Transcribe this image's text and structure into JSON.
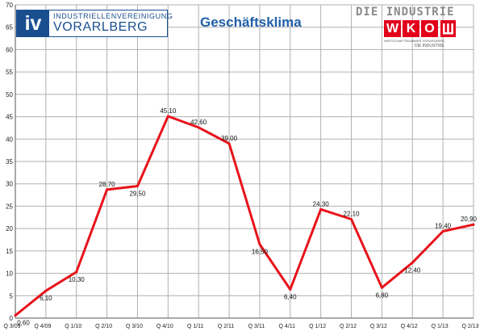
{
  "header": {
    "iv_logo": {
      "mark": "iv",
      "line1": "INDUSTRIELLENVEREINIGUNG",
      "line2": "VORARLBERG",
      "brand_color": "#1a4f8f"
    },
    "wko_logo": {
      "top": "DIE INDUSTRIE",
      "letters": [
        "W",
        "K",
        "O"
      ],
      "tagline": "WIRTSCHAFTSKAMMER VORARLBERG",
      "subline": "DIE INDUSTRIE",
      "brand_color": "#e2001a"
    }
  },
  "chart_data": {
    "type": "line",
    "title": "Geschäftsklima",
    "xlabel": "",
    "ylabel": "",
    "categories": [
      "Q 3/09",
      "Q 4/09",
      "Q 1/10",
      "Q 2/10",
      "Q 3/10",
      "Q 4/10",
      "Q 1/11",
      "Q 2/11",
      "Q 3/11",
      "Q 4/11",
      "Q 1/12",
      "Q 2/12",
      "Q 3/12",
      "Q 4/12",
      "Q 1/13",
      "Q 2/13"
    ],
    "series": [
      {
        "values": [
          0.6,
          6.1,
          10.3,
          28.7,
          29.5,
          45.1,
          42.6,
          39.0,
          16.5,
          6.4,
          24.3,
          22.1,
          6.8,
          12.4,
          19.4,
          20.9
        ],
        "labels": [
          "0,60",
          "6,10",
          "10,30",
          "28,70",
          "29,50",
          "45,10",
          "42,60",
          "39,00",
          "16,50",
          "6,40",
          "24,30",
          "22,10",
          "6,80",
          "12,40",
          "19,40",
          "20,90"
        ],
        "color": "#e8131b"
      }
    ],
    "ylim": [
      0,
      70
    ],
    "yticks": [
      0,
      5,
      10,
      15,
      20,
      25,
      30,
      35,
      40,
      45,
      50,
      55,
      60,
      65,
      70
    ],
    "grid": true,
    "legend": "none",
    "colors": {
      "grid": "#b0b0b0",
      "axis": "#555555",
      "title": "#1f5fa8"
    }
  }
}
